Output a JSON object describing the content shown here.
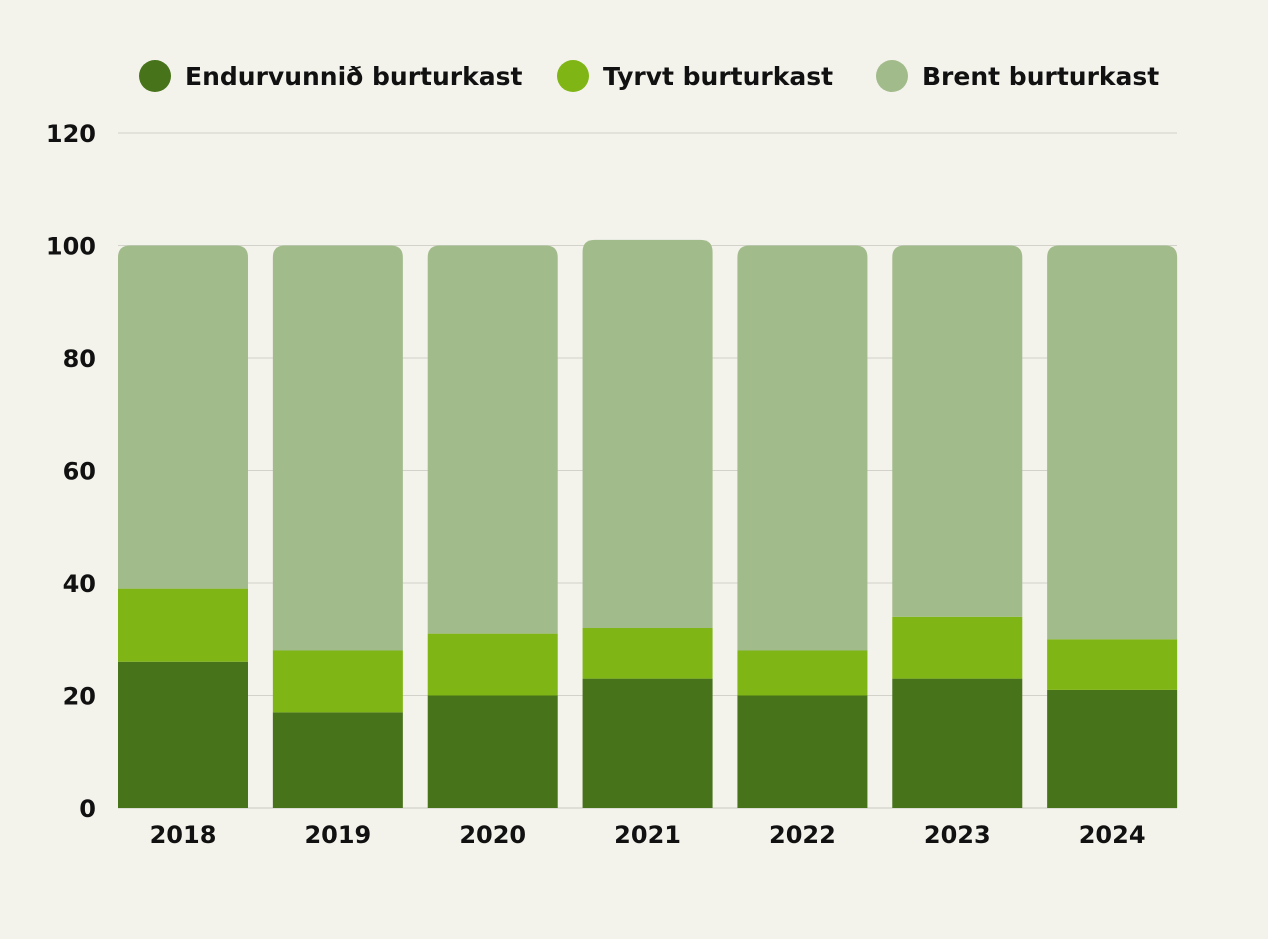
{
  "chart_data": {
    "type": "bar",
    "stacked": true,
    "title": "",
    "xlabel": "",
    "ylabel": "",
    "ylim": [
      0,
      120
    ],
    "yticks": [
      0,
      20,
      40,
      60,
      80,
      100,
      120
    ],
    "grid": true,
    "legend_position": "top",
    "categories": [
      "2018",
      "2019",
      "2020",
      "2021",
      "2022",
      "2023",
      "2024"
    ],
    "series": [
      {
        "name": "Endurvunnið burturkast",
        "color": "#47731a",
        "values": [
          26,
          17,
          20,
          23,
          20,
          23,
          21
        ]
      },
      {
        "name": "Tyrvt burturkast",
        "color": "#7fb514",
        "values": [
          13,
          11,
          11,
          9,
          8,
          11,
          9
        ]
      },
      {
        "name": "Brent burturkast",
        "color": "#a1bb8b",
        "values": [
          61,
          72,
          69,
          69,
          72,
          66,
          70
        ]
      }
    ]
  }
}
